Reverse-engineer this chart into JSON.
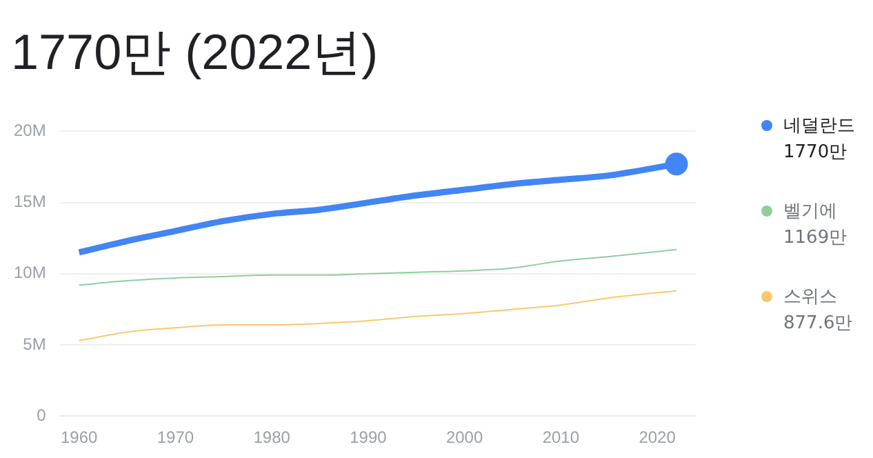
{
  "chart_data": {
    "type": "line",
    "title": "1770만 (2022년)",
    "x": [
      1960,
      1965,
      1970,
      1975,
      1980,
      1985,
      1990,
      1995,
      2000,
      2005,
      2010,
      2015,
      2022
    ],
    "series": [
      {
        "name": "네덜란드",
        "color": "#4285f4",
        "values": [
          11.5,
          12.3,
          13.0,
          13.7,
          14.2,
          14.5,
          15.0,
          15.5,
          15.9,
          16.3,
          16.6,
          16.9,
          17.7
        ]
      },
      {
        "name": "벨기에",
        "color": "#8fce9e",
        "values": [
          9.2,
          9.5,
          9.7,
          9.8,
          9.9,
          9.9,
          10.0,
          10.1,
          10.2,
          10.4,
          10.9,
          11.2,
          11.7
        ]
      },
      {
        "name": "스위스",
        "color": "#fbc86e",
        "values": [
          5.3,
          5.9,
          6.2,
          6.4,
          6.4,
          6.5,
          6.7,
          7.0,
          7.2,
          7.5,
          7.8,
          8.3,
          8.8
        ]
      }
    ],
    "annotations": [
      "1770만",
      "1169만",
      "877.6만"
    ],
    "xlim": [
      1958,
      2024
    ],
    "xticks": [
      1960,
      1970,
      1980,
      1990,
      2000,
      2010,
      2020
    ],
    "ylim": [
      0,
      20
    ],
    "yticks": [
      0,
      {
        "value": 5,
        "label": "5M"
      },
      {
        "value": 10,
        "label": "10M"
      },
      {
        "value": 15,
        "label": "15M"
      },
      {
        "value": 20,
        "label": "20M"
      }
    ],
    "grid": "y",
    "legend": "right"
  }
}
